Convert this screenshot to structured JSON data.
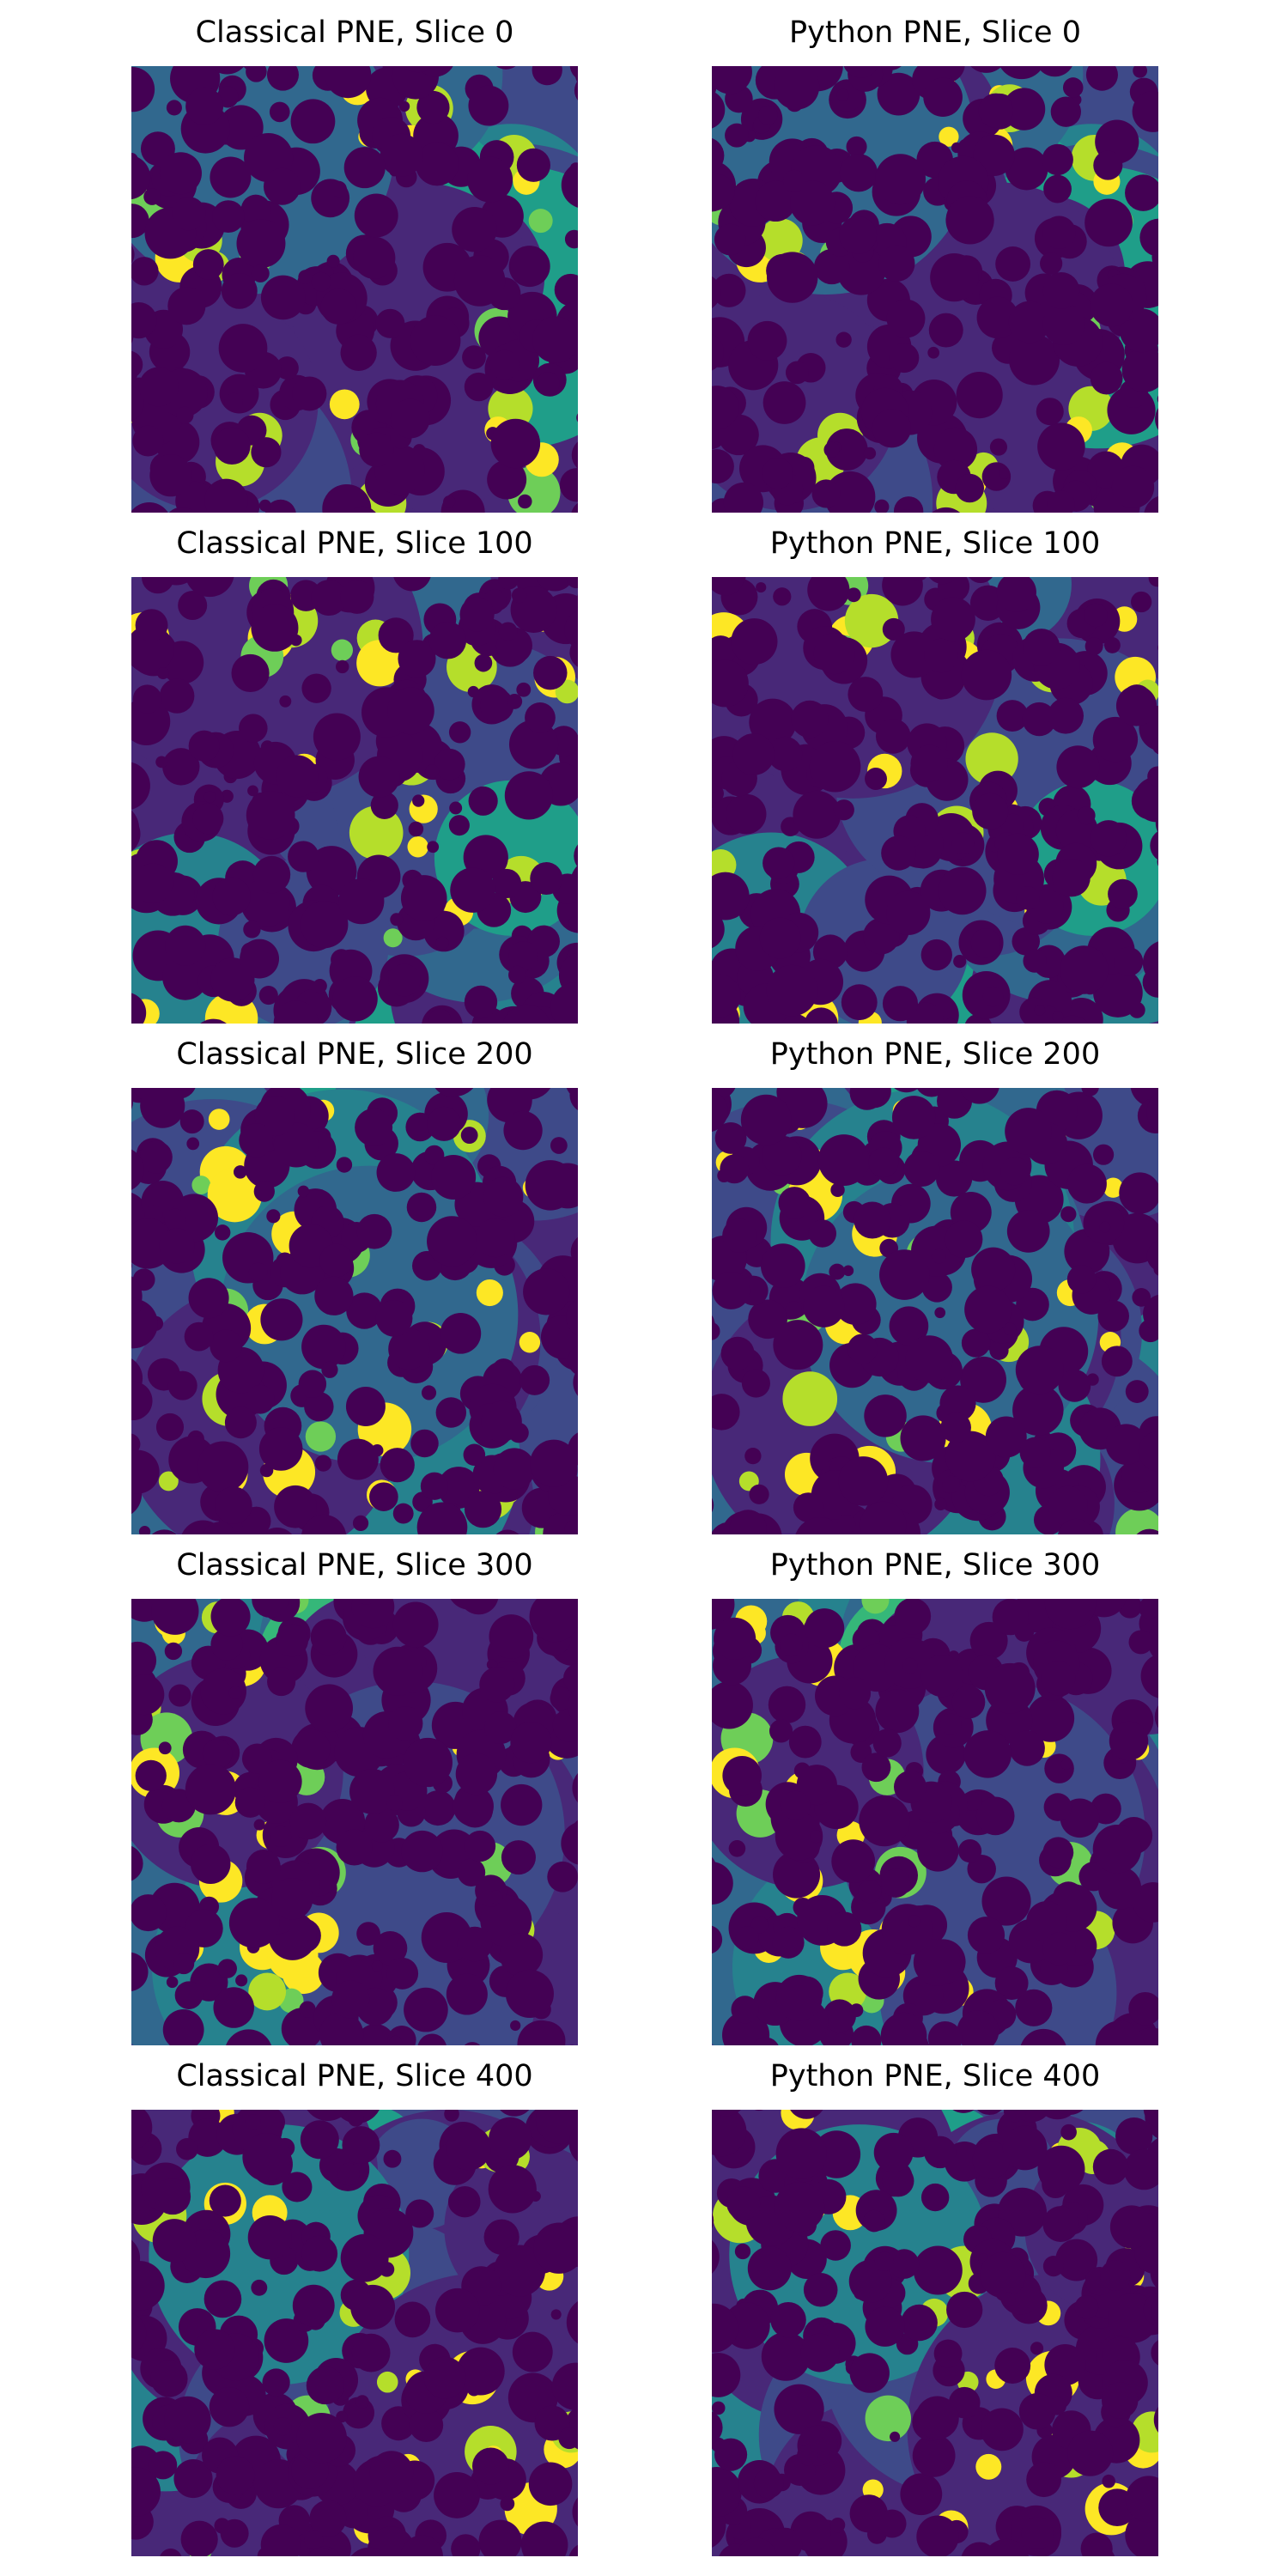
{
  "figure": {
    "panels": [
      {
        "title": "Classical PNE, Slice 0"
      },
      {
        "title": "Python PNE, Slice 0"
      },
      {
        "title": "Classical PNE, Slice 100"
      },
      {
        "title": "Python PNE, Slice 100"
      },
      {
        "title": "Classical PNE, Slice 200"
      },
      {
        "title": "Python PNE, Slice 200"
      },
      {
        "title": "Classical PNE, Slice 300"
      },
      {
        "title": "Python PNE, Slice 300"
      },
      {
        "title": "Classical PNE, Slice 400"
      },
      {
        "title": "Python PNE, Slice 400"
      }
    ],
    "colors": {
      "solid": "#440154",
      "viridis": [
        "#482878",
        "#3e4a89",
        "#31688e",
        "#26828e",
        "#1f9e89",
        "#35b779",
        "#6ece58",
        "#b5de2b",
        "#fde725"
      ]
    }
  }
}
